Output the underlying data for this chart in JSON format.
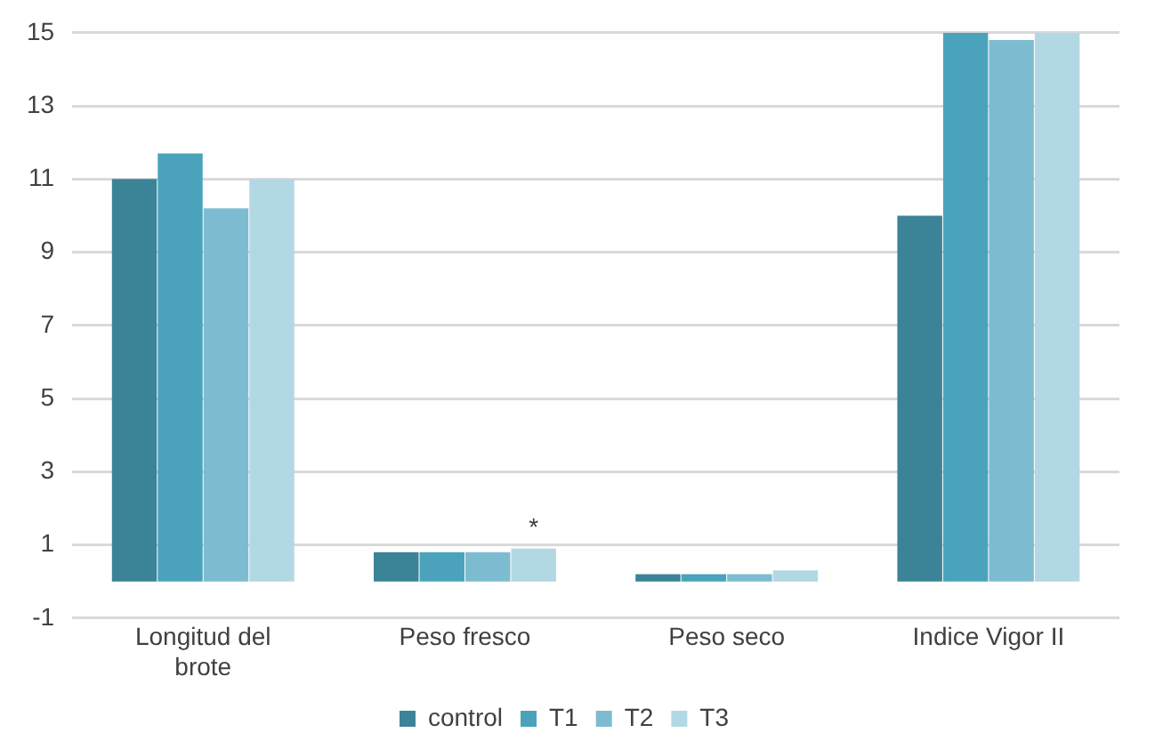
{
  "chart_data": {
    "type": "bar",
    "categories": [
      "Longitud del brote",
      "Peso fresco",
      "Peso seco",
      "Indice Vigor II"
    ],
    "series": [
      {
        "name": "control",
        "color": "#3b8397",
        "values": [
          11,
          0.8,
          0.2,
          10
        ]
      },
      {
        "name": "T1",
        "color": "#4aa3bb",
        "values": [
          11.7,
          0.8,
          0.2,
          15
        ]
      },
      {
        "name": "T2",
        "color": "#7dbcd0",
        "values": [
          10.2,
          0.8,
          0.2,
          14.8
        ]
      },
      {
        "name": "T3",
        "color": "#b2d8e4",
        "values": [
          11,
          0.9,
          0.3,
          15
        ]
      }
    ],
    "ylim": [
      -1,
      15
    ],
    "yticks": [
      -1,
      1,
      3,
      5,
      7,
      9,
      11,
      13,
      15
    ],
    "grid": "y",
    "legend": "bottom",
    "annotations": [
      {
        "text": "*",
        "x": "Peso fresco",
        "y": 0.9
      }
    ]
  }
}
